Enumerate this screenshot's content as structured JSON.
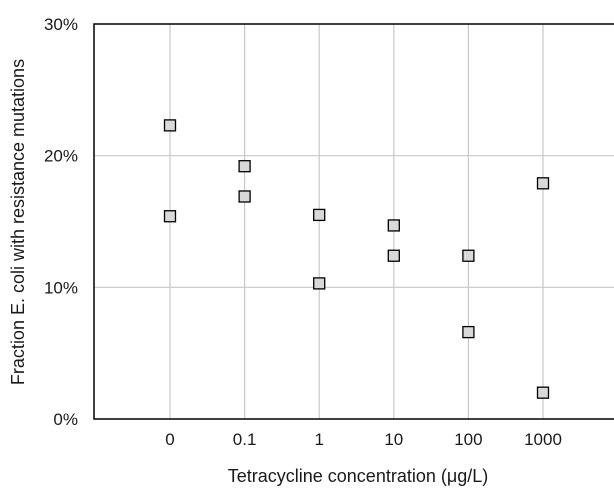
{
  "chart_data": {
    "type": "scatter",
    "xlabel": "Tetracycline concentration (μg/L)",
    "ylabel": "Fraction E. coli with resistance mutations",
    "categories": [
      "0",
      "0.1",
      "1",
      "10",
      "100",
      "1000"
    ],
    "y_ticks": [
      "0%",
      "10%",
      "20%",
      "30%"
    ],
    "ylim": [
      0,
      30
    ],
    "y_unit": "%",
    "grid": true,
    "legend": "none",
    "series": [
      {
        "points": [
          {
            "x": "0",
            "y": 22.3
          },
          {
            "x": "0",
            "y": 15.4
          },
          {
            "x": "0.1",
            "y": 19.2
          },
          {
            "x": "0.1",
            "y": 16.9
          },
          {
            "x": "1",
            "y": 15.5
          },
          {
            "x": "1",
            "y": 10.3
          },
          {
            "x": "10",
            "y": 14.7
          },
          {
            "x": "10",
            "y": 12.4
          },
          {
            "x": "100",
            "y": 12.4
          },
          {
            "x": "100",
            "y": 6.6
          },
          {
            "x": "1000",
            "y": 17.9
          },
          {
            "x": "1000",
            "y": 2.0
          }
        ]
      }
    ],
    "colors": {
      "marker_fill": "#d9d9d9",
      "marker_stroke": "#000000",
      "grid": "#c8c8c8",
      "axis": "#000000"
    }
  }
}
